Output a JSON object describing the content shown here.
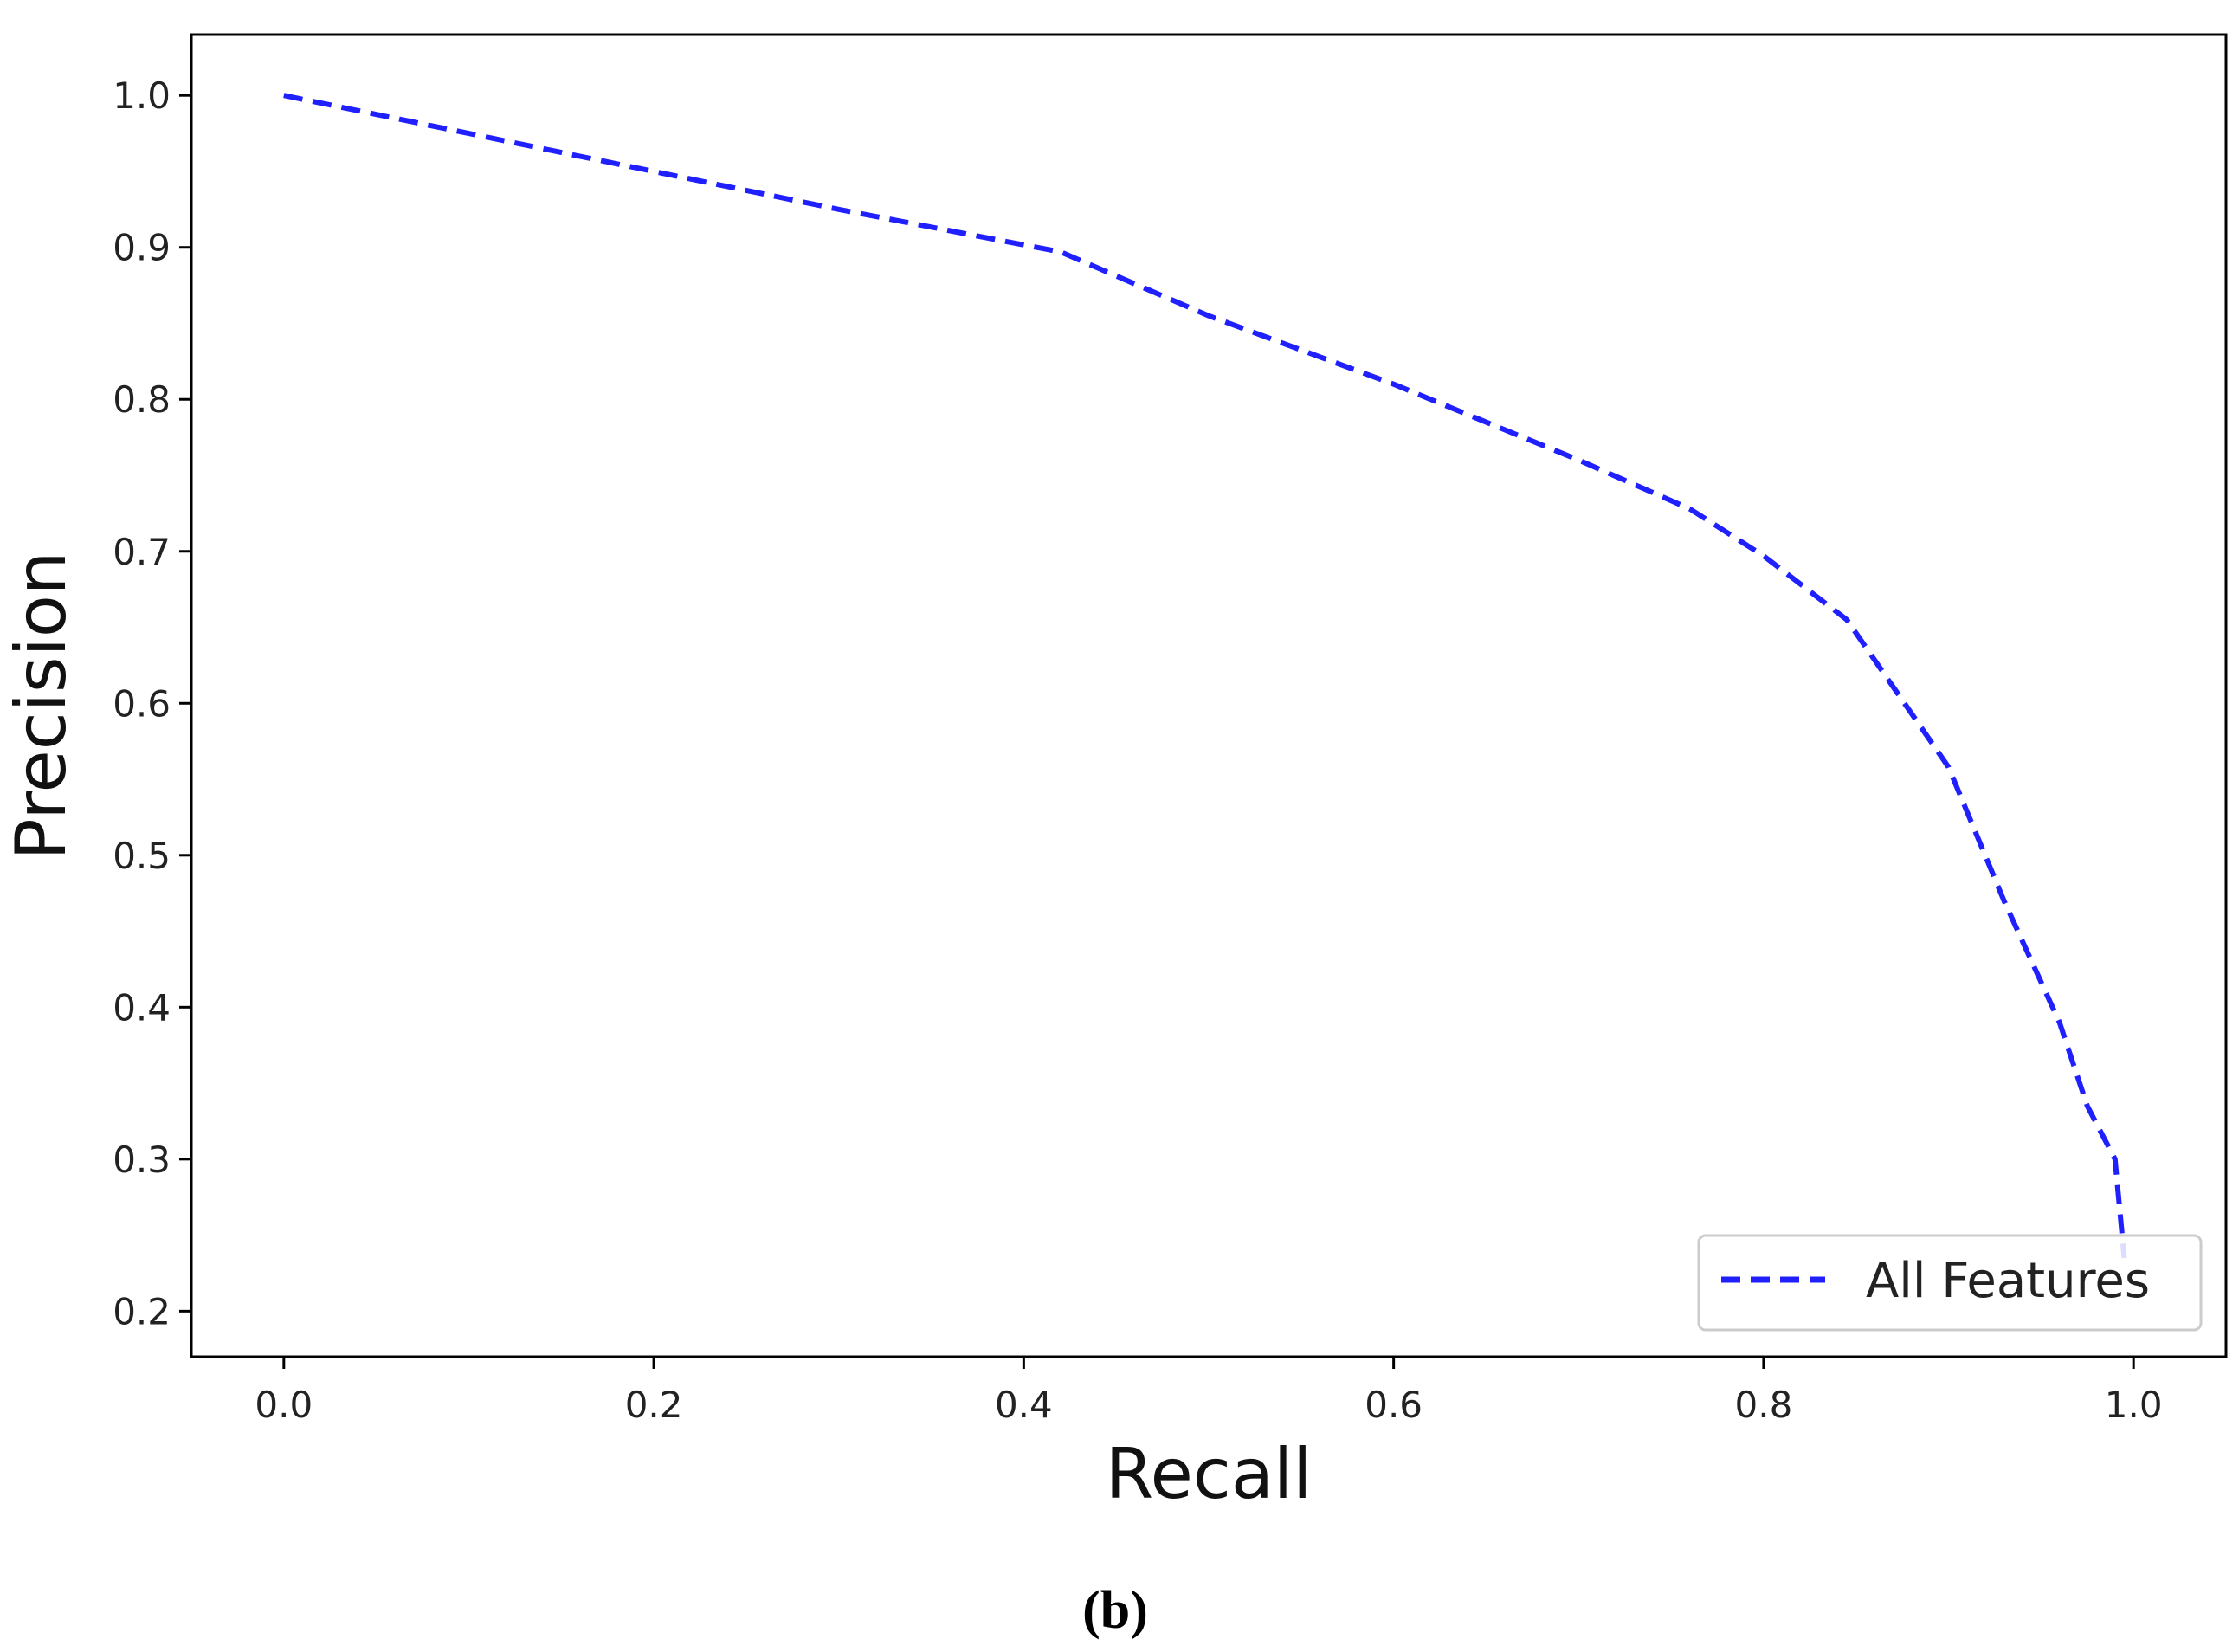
{
  "chart_data": {
    "type": "line",
    "title": "",
    "xlabel": "Recall",
    "ylabel": "Precision",
    "xlim": [
      -0.05,
      1.05
    ],
    "ylim": [
      0.17,
      1.04
    ],
    "x_ticks": [
      0.0,
      0.2,
      0.4,
      0.6,
      0.8,
      1.0
    ],
    "x_tick_labels": [
      "0.0",
      "0.2",
      "0.4",
      "0.6",
      "0.8",
      "1.0"
    ],
    "y_ticks": [
      0.2,
      0.3,
      0.4,
      0.5,
      0.6,
      0.7,
      0.8,
      0.9,
      1.0
    ],
    "y_tick_labels": [
      "0.2",
      "0.3",
      "0.4",
      "0.5",
      "0.6",
      "0.7",
      "0.8",
      "0.9",
      "1.0"
    ],
    "grid": false,
    "legend_position": "lower-right",
    "series": [
      {
        "name": "All Features",
        "color": "#2020ff",
        "line_style": "dashed",
        "x": [
          0.0,
          0.1,
          0.2,
          0.3,
          0.42,
          0.5,
          0.6,
          0.7,
          0.76,
          0.8,
          0.845,
          0.9,
          0.93,
          0.96,
          0.975,
          0.99,
          0.995
        ],
        "y": [
          1.0,
          0.975,
          0.95,
          0.925,
          0.897,
          0.855,
          0.81,
          0.76,
          0.728,
          0.697,
          0.655,
          0.558,
          0.47,
          0.39,
          0.335,
          0.3,
          0.235
        ]
      }
    ]
  },
  "caption": "(b)"
}
